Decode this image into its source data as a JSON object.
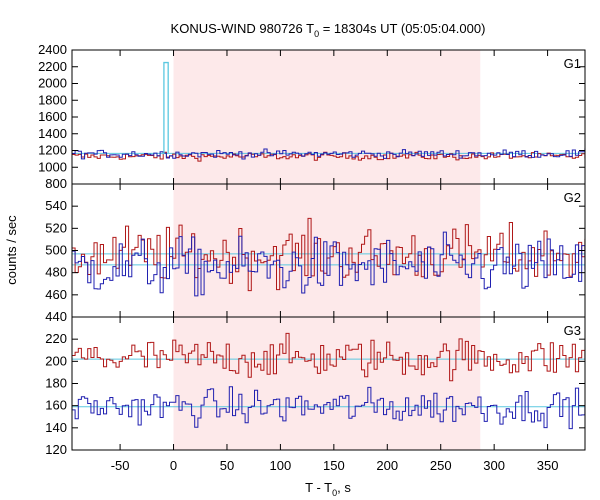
{
  "chart_data": [
    {
      "type": "line",
      "panel_label": "G1",
      "xlim": [
        -95,
        385
      ],
      "ylim": [
        800,
        2400
      ],
      "yticks": [
        800,
        1000,
        1200,
        1400,
        1600,
        1800,
        2000,
        2200,
        2400
      ],
      "highlight_interval": [
        0,
        287
      ],
      "series": [
        {
          "color": "#b01818",
          "baseline": 1130,
          "noise": 22
        },
        {
          "color": "#2020b0",
          "baseline": 1160,
          "noise": 24
        }
      ],
      "background_level": 1165,
      "spike": {
        "x_start": -9,
        "x_end": -5,
        "value": 2250
      }
    },
    {
      "type": "line",
      "panel_label": "G2",
      "xlim": [
        -95,
        385
      ],
      "ylim": [
        440,
        560
      ],
      "yticks": [
        440,
        460,
        480,
        500,
        520,
        540
      ],
      "highlight_interval": [
        0,
        287
      ],
      "series": [
        {
          "color": "#b01818",
          "baseline": 496,
          "noise": 13
        },
        {
          "color": "#2020b0",
          "baseline": 485,
          "noise": 13
        }
      ],
      "background_levels": [
        497,
        487
      ]
    },
    {
      "type": "line",
      "panel_label": "G3",
      "xlim": [
        -95,
        385
      ],
      "ylim": [
        120,
        240
      ],
      "yticks": [
        120,
        140,
        160,
        180,
        200,
        220
      ],
      "highlight_interval": [
        0,
        287
      ],
      "series": [
        {
          "color": "#b01818",
          "baseline": 203,
          "noise": 9
        },
        {
          "color": "#2020b0",
          "baseline": 159,
          "noise": 8
        }
      ],
      "background_levels": [
        202,
        159
      ]
    }
  ],
  "title_main": "KONUS-WIND 980726 T",
  "title_sub": "0",
  "title_rest": " = 18304s UT (05:05:04.000)",
  "ylabel": "counts / sec",
  "xlabel_main": "T - T",
  "xlabel_sub": "0",
  "xlabel_rest": ", s",
  "xticks": [
    -50,
    0,
    50,
    100,
    150,
    200,
    250,
    300,
    350
  ],
  "colors": {
    "highlight": "#fde9ea",
    "background_fit": "#5bc8e0",
    "spike": "#5bc8e0"
  }
}
